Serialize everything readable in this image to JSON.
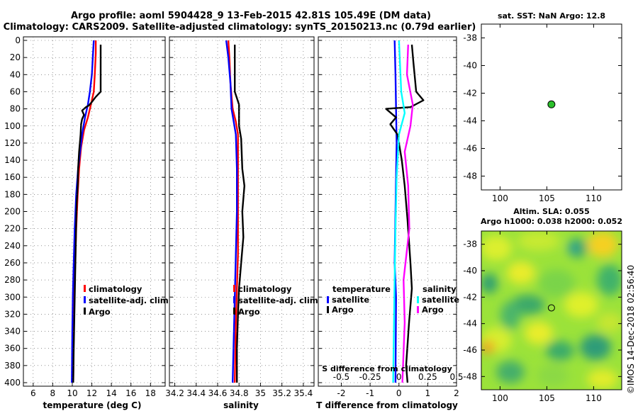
{
  "header": {
    "line1": "Argo profile: aoml 5904428_9 13-Feb-2015 42.81S 105.49E (DM data)",
    "line2": "Climatology: CARS2009. Satellite-adjusted climatology: synTS_20150213.nc (0.79d earlier)"
  },
  "credit": "©IMOS 14-Dec-2018 02:56:40",
  "colors": {
    "climatology": "#ff0000",
    "satellite": "#0000ff",
    "argo": "#000000",
    "sal_sat": "#00ffff",
    "sal_argo": "#ff00ff"
  },
  "chart_data": [
    {
      "type": "line",
      "name": "temperature",
      "xlabel": "temperature (deg C)",
      "xlim": [
        5,
        19.5
      ],
      "ylim": [
        400,
        0
      ],
      "x_ticks": [
        "6",
        "8",
        "10",
        "12",
        "14",
        "16",
        "18"
      ],
      "y_ticks": [
        "0",
        "20",
        "40",
        "60",
        "80",
        "100",
        "120",
        "140",
        "160",
        "180",
        "200",
        "220",
        "240",
        "260",
        "280",
        "300",
        "320",
        "340",
        "360",
        "380",
        "400"
      ],
      "legend": [
        "climatology",
        "satellite-adj. clim.",
        "Argo"
      ],
      "series": [
        {
          "name": "climatology",
          "color": "#ff0000",
          "points": [
            [
              12.4,
              0
            ],
            [
              12.4,
              15
            ],
            [
              12.3,
              40
            ],
            [
              12.2,
              60
            ],
            [
              11.9,
              75
            ],
            [
              11.6,
              90
            ],
            [
              11.2,
              105
            ],
            [
              10.9,
              125
            ],
            [
              10.7,
              150
            ],
            [
              10.55,
              180
            ],
            [
              10.4,
              220
            ],
            [
              10.3,
              260
            ],
            [
              10.2,
              300
            ],
            [
              10.15,
              340
            ],
            [
              10.1,
              400
            ]
          ]
        },
        {
          "name": "satellite-adj. clim.",
          "color": "#0000ff",
          "points": [
            [
              12.2,
              0
            ],
            [
              12.1,
              20
            ],
            [
              12.0,
              40
            ],
            [
              11.8,
              60
            ],
            [
              11.6,
              75
            ],
            [
              11.3,
              90
            ],
            [
              11.0,
              110
            ],
            [
              10.8,
              130
            ],
            [
              10.6,
              150
            ],
            [
              10.4,
              180
            ],
            [
              10.25,
              220
            ],
            [
              10.15,
              260
            ],
            [
              10.05,
              300
            ],
            [
              10.0,
              340
            ],
            [
              9.95,
              400
            ]
          ]
        },
        {
          "name": "Argo",
          "color": "#000000",
          "points": [
            [
              12.9,
              5
            ],
            [
              12.9,
              60
            ],
            [
              12.4,
              66
            ],
            [
              12.0,
              72
            ],
            [
              11.7,
              76
            ],
            [
              11.4,
              78
            ],
            [
              11.0,
              82
            ],
            [
              11.2,
              87
            ],
            [
              11.0,
              92
            ],
            [
              10.9,
              98
            ],
            [
              10.85,
              110
            ],
            [
              10.7,
              130
            ],
            [
              10.6,
              150
            ],
            [
              10.55,
              170
            ],
            [
              10.45,
              190
            ],
            [
              10.4,
              210
            ],
            [
              10.35,
              240
            ],
            [
              10.3,
              270
            ],
            [
              10.25,
              300
            ],
            [
              10.2,
              330
            ],
            [
              10.15,
              360
            ],
            [
              10.1,
              400
            ]
          ]
        }
      ]
    },
    {
      "type": "line",
      "name": "salinity",
      "xlabel": "salinity",
      "xlim": [
        34.15,
        35.5
      ],
      "ylim": [
        400,
        0
      ],
      "x_ticks": [
        "34.2",
        "34.4",
        "34.6",
        "34.8",
        "35",
        "35.2",
        "35.4"
      ],
      "legend": [
        "climatology",
        "satellite-adj. clim.",
        "Argo"
      ],
      "series": [
        {
          "name": "climatology",
          "color": "#ff0000",
          "points": [
            [
              34.7,
              0
            ],
            [
              34.71,
              20
            ],
            [
              34.72,
              50
            ],
            [
              34.74,
              80
            ],
            [
              34.77,
              95
            ],
            [
              34.79,
              110
            ],
            [
              34.79,
              150
            ],
            [
              34.79,
              200
            ],
            [
              34.79,
              250
            ],
            [
              34.78,
              290
            ],
            [
              34.77,
              330
            ],
            [
              34.76,
              400
            ]
          ]
        },
        {
          "name": "satellite-adj. clim.",
          "color": "#0000ff",
          "points": [
            [
              34.68,
              0
            ],
            [
              34.7,
              20
            ],
            [
              34.72,
              50
            ],
            [
              34.73,
              80
            ],
            [
              34.75,
              95
            ],
            [
              34.77,
              110
            ],
            [
              34.78,
              150
            ],
            [
              34.78,
              200
            ],
            [
              34.77,
              250
            ],
            [
              34.76,
              300
            ],
            [
              34.75,
              350
            ],
            [
              34.74,
              400
            ]
          ]
        },
        {
          "name": "Argo",
          "color": "#000000",
          "points": [
            [
              34.76,
              5
            ],
            [
              34.76,
              60
            ],
            [
              34.8,
              75
            ],
            [
              34.8,
              100
            ],
            [
              34.82,
              115
            ],
            [
              34.83,
              150
            ],
            [
              34.85,
              170
            ],
            [
              34.83,
              200
            ],
            [
              34.84,
              230
            ],
            [
              34.82,
              260
            ],
            [
              34.8,
              290
            ],
            [
              34.79,
              320
            ],
            [
              34.78,
              360
            ],
            [
              34.78,
              400
            ]
          ]
        }
      ]
    },
    {
      "type": "line",
      "name": "difference",
      "xlabel": "T difference from climatology",
      "top_label": "S difference from climatology",
      "xlim": [
        -2.8,
        2.0
      ],
      "ylim": [
        400,
        0
      ],
      "x_ticks": [
        "-2",
        "-1",
        "0",
        "1",
        "2"
      ],
      "top_ticks": [
        "-0.5",
        "-0.25",
        "0",
        "0.25",
        "0.5"
      ],
      "legend_t": {
        "title": "temperature",
        "items": [
          "satellite",
          "Argo"
        ]
      },
      "legend_s": {
        "title": "salinity",
        "items": [
          "satellite",
          "Argo"
        ]
      },
      "series": [
        {
          "name": "T satellite",
          "color": "#0000ff",
          "points": [
            [
              -0.15,
              0
            ],
            [
              -0.12,
              40
            ],
            [
              -0.1,
              80
            ],
            [
              -0.08,
              120
            ],
            [
              -0.1,
              160
            ],
            [
              -0.12,
              200
            ],
            [
              -0.15,
              260
            ],
            [
              -0.1,
              300
            ],
            [
              -0.12,
              400
            ]
          ]
        },
        {
          "name": "T Argo",
          "color": "#000000",
          "points": [
            [
              0.45,
              5
            ],
            [
              0.5,
              25
            ],
            [
              0.6,
              60
            ],
            [
              0.85,
              70
            ],
            [
              0.4,
              78
            ],
            [
              -0.45,
              80
            ],
            [
              -0.1,
              90
            ],
            [
              -0.3,
              98
            ],
            [
              -0.05,
              110
            ],
            [
              0.1,
              140
            ],
            [
              0.2,
              170
            ],
            [
              0.3,
              210
            ],
            [
              0.4,
              260
            ],
            [
              0.45,
              290
            ],
            [
              0.35,
              330
            ],
            [
              0.25,
              380
            ],
            [
              0.3,
              400
            ]
          ]
        },
        {
          "name": "S satellite",
          "color": "#00ffff",
          "points": [
            [
              0.0,
              0
            ],
            [
              0.02,
              60
            ],
            [
              0.05,
              85
            ],
            [
              0.0,
              110
            ],
            [
              -0.02,
              160
            ],
            [
              -0.03,
              220
            ],
            [
              -0.04,
              300
            ],
            [
              -0.05,
              400
            ]
          ]
        },
        {
          "name": "S Argo",
          "color": "#ff00ff",
          "points": [
            [
              0.08,
              5
            ],
            [
              0.07,
              40
            ],
            [
              0.12,
              75
            ],
            [
              0.1,
              100
            ],
            [
              0.05,
              130
            ],
            [
              0.08,
              170
            ],
            [
              0.09,
              220
            ],
            [
              0.04,
              280
            ],
            [
              0.05,
              330
            ],
            [
              0.03,
              400
            ]
          ]
        }
      ]
    },
    {
      "type": "scatter",
      "name": "location",
      "title": "sat. SST: NaN Argo: 12.8",
      "xlim": [
        98,
        113
      ],
      "ylim": [
        -49,
        -37
      ],
      "x_ticks": [
        "100",
        "105",
        "110"
      ],
      "y_ticks": [
        "-38",
        "-40",
        "-42",
        "-44",
        "-46",
        "-48"
      ],
      "point": [
        105.49,
        -42.81
      ]
    },
    {
      "type": "heatmap",
      "name": "sla",
      "title1": "Altim. SLA: 0.055",
      "title2": "Argo h1000: 0.038 h2000: 0.052",
      "xlim": [
        98,
        113
      ],
      "ylim": [
        -49,
        -37
      ],
      "x_ticks": [
        "100",
        "105",
        "110"
      ],
      "y_ticks": [
        "-38",
        "-40",
        "-42",
        "-44",
        "-46",
        "-48"
      ],
      "point": [
        105.49,
        -42.81
      ]
    }
  ]
}
